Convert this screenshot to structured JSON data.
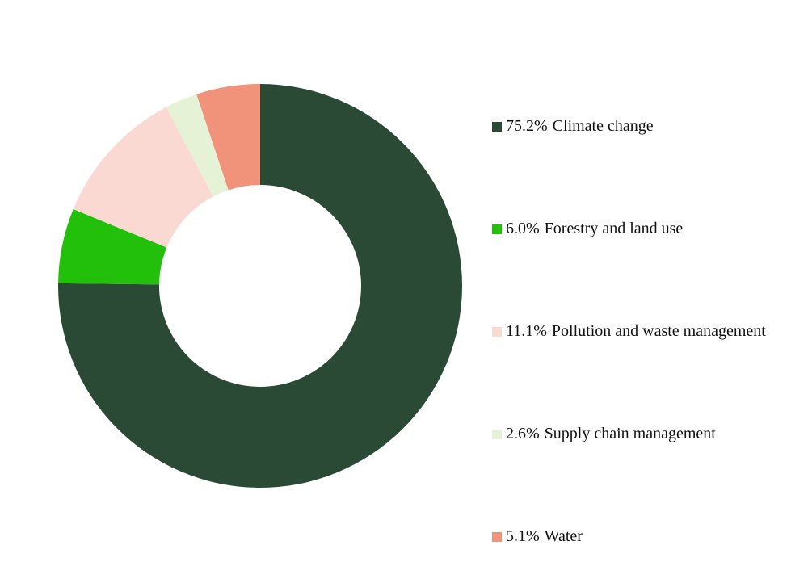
{
  "chart_data": {
    "type": "donut",
    "categories": [
      "Climate change",
      "Forestry and land use",
      "Pollution and waste management",
      "Supply chain management",
      "Water"
    ],
    "values": [
      75.2,
      6.0,
      11.1,
      2.6,
      5.1
    ],
    "value_labels": [
      "75.2%",
      "6.0%",
      "11.1%",
      "2.6%",
      "5.1%"
    ],
    "colors": [
      "#2b4a36",
      "#22bf0b",
      "#fad9d3",
      "#e6f2d6",
      "#f0937a"
    ],
    "legend": "right"
  }
}
